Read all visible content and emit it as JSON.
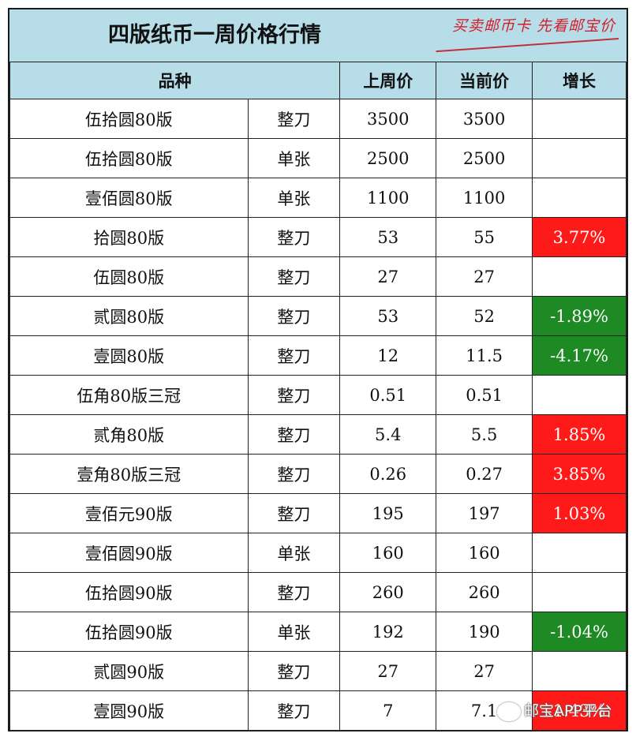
{
  "title": "四版纸币一周价格行情",
  "slogan": "买卖邮币卡  先看邮宝价",
  "headers": {
    "variety": "品种",
    "last_week": "上周价",
    "current": "当前价",
    "growth": "增长"
  },
  "rows": [
    {
      "name": "伍拾圆80版",
      "type": "整刀",
      "last": "3500",
      "current": "3500",
      "growth": "",
      "trend": ""
    },
    {
      "name": "伍拾圆80版",
      "type": "单张",
      "last": "2500",
      "current": "2500",
      "growth": "",
      "trend": ""
    },
    {
      "name": "壹佰圆80版",
      "type": "单张",
      "last": "1100",
      "current": "1100",
      "growth": "",
      "trend": ""
    },
    {
      "name": "拾圆80版",
      "type": "整刀",
      "last": "53",
      "current": "55",
      "growth": "3.77%",
      "trend": "up"
    },
    {
      "name": "伍圆80版",
      "type": "整刀",
      "last": "27",
      "current": "27",
      "growth": "",
      "trend": ""
    },
    {
      "name": "贰圆80版",
      "type": "整刀",
      "last": "53",
      "current": "52",
      "growth": "-1.89%",
      "trend": "down"
    },
    {
      "name": "壹圆80版",
      "type": "整刀",
      "last": "12",
      "current": "11.5",
      "growth": "-4.17%",
      "trend": "down"
    },
    {
      "name": "伍角80版三冠",
      "type": "整刀",
      "last": "0.51",
      "current": "0.51",
      "growth": "",
      "trend": ""
    },
    {
      "name": "贰角80版",
      "type": "整刀",
      "last": "5.4",
      "current": "5.5",
      "growth": "1.85%",
      "trend": "up"
    },
    {
      "name": "壹角80版三冠",
      "type": "整刀",
      "last": "0.26",
      "current": "0.27",
      "growth": "3.85%",
      "trend": "up"
    },
    {
      "name": "壹佰元90版",
      "type": "整刀",
      "last": "195",
      "current": "197",
      "growth": "1.03%",
      "trend": "up"
    },
    {
      "name": "壹佰圆90版",
      "type": "单张",
      "last": "160",
      "current": "160",
      "growth": "",
      "trend": ""
    },
    {
      "name": "伍拾圆90版",
      "type": "整刀",
      "last": "260",
      "current": "260",
      "growth": "",
      "trend": ""
    },
    {
      "name": "伍拾圆90版",
      "type": "单张",
      "last": "192",
      "current": "190",
      "growth": "-1.04%",
      "trend": "down"
    },
    {
      "name": "贰圆90版",
      "type": "整刀",
      "last": "27",
      "current": "27",
      "growth": "",
      "trend": ""
    },
    {
      "name": "壹圆90版",
      "type": "整刀",
      "last": "7",
      "current": "7.1",
      "growth": "1.43%",
      "trend": "up"
    }
  ],
  "watermark": "邮宝APP平台",
  "colors": {
    "header_bg": "#b7dde8",
    "up": "#ff1a1a",
    "down": "#1e8a23",
    "slogan": "#d21e2b"
  }
}
